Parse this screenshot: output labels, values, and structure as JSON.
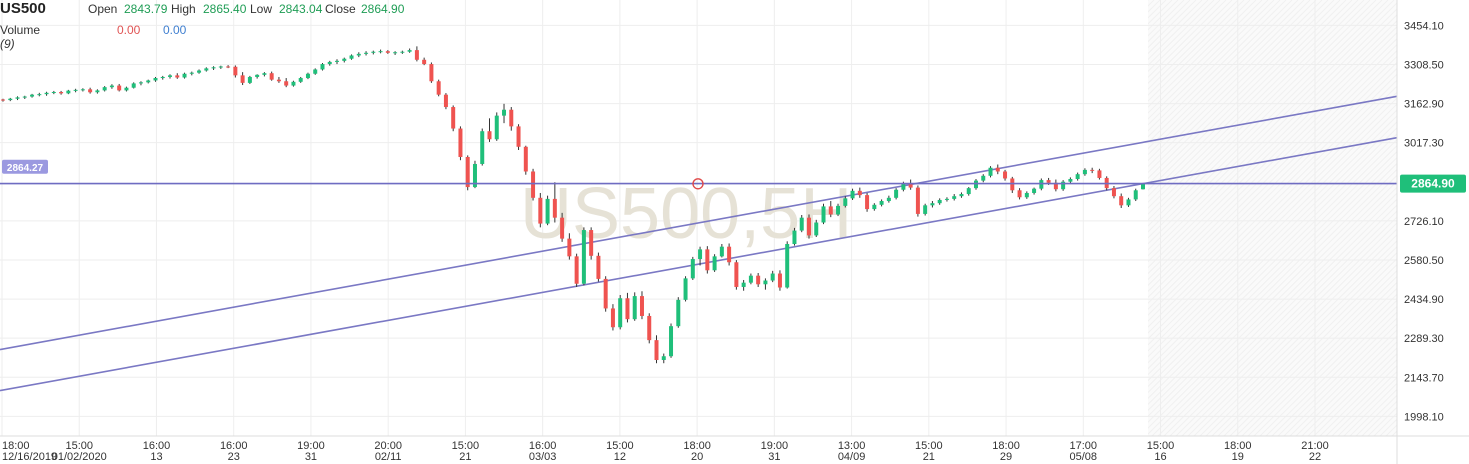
{
  "legend": {
    "symbol": "US500",
    "open_label": "Open",
    "open_value": "2843.79",
    "high_label": "High",
    "high_value": "2865.40",
    "low_label": "Low",
    "low_value": "2843.04",
    "close_label": "Close",
    "close_value": "2864.90",
    "volume_label": "Volume",
    "volume_period": "(9)",
    "volume_value_a": "0.00",
    "volume_value_b": "0.00"
  },
  "watermark": "US500,5H",
  "colors": {
    "up": "#26a69a",
    "up_fill": "#1fbf7a",
    "down": "#ef5350",
    "trend_line": "#7a78c4",
    "price_line": "#6f6cc2",
    "grid": "#eeeeee",
    "price_tag": "#1fbf7a",
    "cursor_tag": "#9b99e0",
    "cursor_circle": "#e04a4a"
  },
  "chart_data": {
    "type": "candlestick",
    "title": "",
    "xlabel": "",
    "ylabel": "",
    "ylim": [
      1925,
      3530
    ],
    "y_ticks": [
      "3454.10",
      "3308.50",
      "3162.90",
      "3017.30",
      "2864.90",
      "2726.10",
      "2580.50",
      "2434.90",
      "2289.30",
      "2143.70",
      "1998.10"
    ],
    "y_tick_values": [
      3454.1,
      3308.5,
      3162.9,
      3017.3,
      2864.9,
      2726.1,
      2580.5,
      2434.9,
      2289.3,
      2143.7,
      1998.1
    ],
    "current_price": "2864.90",
    "current_price_value": 2864.9,
    "cursor_price": "2864.27",
    "cursor_price_value": 2864.27,
    "x_ticks": [
      {
        "time": "18:00",
        "date": "12/16/2019"
      },
      {
        "time": "15:00",
        "date": "01/02/2020"
      },
      {
        "time": "16:00",
        "date": "13"
      },
      {
        "time": "16:00",
        "date": "23"
      },
      {
        "time": "19:00",
        "date": "31"
      },
      {
        "time": "20:00",
        "date": "02/11"
      },
      {
        "time": "15:00",
        "date": "21"
      },
      {
        "time": "16:00",
        "date": "03/03"
      },
      {
        "time": "15:00",
        "date": "12"
      },
      {
        "time": "18:00",
        "date": "20"
      },
      {
        "time": "19:00",
        "date": "31"
      },
      {
        "time": "13:00",
        "date": "04/09"
      },
      {
        "time": "15:00",
        "date": "21"
      },
      {
        "time": "18:00",
        "date": "29"
      },
      {
        "time": "17:00",
        "date": "05/08"
      },
      {
        "time": "15:00",
        "date": "16"
      },
      {
        "time": "18:00",
        "date": "19"
      },
      {
        "time": "21:00",
        "date": "22"
      }
    ],
    "trend_lines": [
      {
        "from_tick": "18:00 12/16/2019",
        "from_value": 2247,
        "to_value": 3190
      },
      {
        "from_tick": "18:00 12/16/2019",
        "from_value": 2094,
        "to_value": 3036
      }
    ],
    "candles": [
      [
        3178,
        3181,
        3170,
        3176
      ],
      [
        3176,
        3184,
        3172,
        3181
      ],
      [
        3181,
        3190,
        3176,
        3186
      ],
      [
        3186,
        3192,
        3180,
        3189
      ],
      [
        3189,
        3199,
        3185,
        3196
      ],
      [
        3196,
        3203,
        3190,
        3198
      ],
      [
        3198,
        3207,
        3192,
        3203
      ],
      [
        3203,
        3210,
        3198,
        3206
      ],
      [
        3206,
        3210,
        3196,
        3201
      ],
      [
        3201,
        3214,
        3198,
        3211
      ],
      [
        3211,
        3218,
        3205,
        3214
      ],
      [
        3214,
        3220,
        3208,
        3216
      ],
      [
        3216,
        3222,
        3200,
        3205
      ],
      [
        3205,
        3216,
        3200,
        3212
      ],
      [
        3212,
        3228,
        3208,
        3224
      ],
      [
        3224,
        3235,
        3218,
        3230
      ],
      [
        3230,
        3236,
        3208,
        3212
      ],
      [
        3212,
        3226,
        3208,
        3222
      ],
      [
        3222,
        3242,
        3219,
        3238
      ],
      [
        3238,
        3246,
        3231,
        3242
      ],
      [
        3242,
        3252,
        3238,
        3249
      ],
      [
        3249,
        3262,
        3244,
        3258
      ],
      [
        3258,
        3266,
        3252,
        3262
      ],
      [
        3262,
        3272,
        3256,
        3268
      ],
      [
        3268,
        3276,
        3255,
        3260
      ],
      [
        3260,
        3278,
        3256,
        3274
      ],
      [
        3274,
        3282,
        3268,
        3278
      ],
      [
        3278,
        3290,
        3274,
        3286
      ],
      [
        3286,
        3298,
        3282,
        3294
      ],
      [
        3294,
        3302,
        3288,
        3298
      ],
      [
        3298,
        3304,
        3292,
        3301
      ],
      [
        3301,
        3306,
        3295,
        3300
      ],
      [
        3300,
        3305,
        3260,
        3268
      ],
      [
        3268,
        3280,
        3232,
        3240
      ],
      [
        3240,
        3266,
        3236,
        3262
      ],
      [
        3262,
        3272,
        3256,
        3270
      ],
      [
        3270,
        3280,
        3264,
        3276
      ],
      [
        3276,
        3282,
        3248,
        3252
      ],
      [
        3252,
        3262,
        3240,
        3246
      ],
      [
        3246,
        3258,
        3224,
        3230
      ],
      [
        3230,
        3248,
        3226,
        3244
      ],
      [
        3244,
        3262,
        3240,
        3258
      ],
      [
        3258,
        3278,
        3254,
        3274
      ],
      [
        3274,
        3294,
        3270,
        3290
      ],
      [
        3290,
        3314,
        3286,
        3310
      ],
      [
        3310,
        3322,
        3304,
        3318
      ],
      [
        3318,
        3328,
        3310,
        3322
      ],
      [
        3322,
        3334,
        3316,
        3330
      ],
      [
        3330,
        3346,
        3326,
        3342
      ],
      [
        3342,
        3354,
        3336,
        3348
      ],
      [
        3348,
        3358,
        3342,
        3352
      ],
      [
        3352,
        3360,
        3346,
        3356
      ],
      [
        3356,
        3364,
        3350,
        3358
      ],
      [
        3358,
        3362,
        3348,
        3352
      ],
      [
        3352,
        3358,
        3344,
        3354
      ],
      [
        3354,
        3360,
        3348,
        3356
      ],
      [
        3356,
        3368,
        3352,
        3362
      ],
      [
        3362,
        3376,
        3320,
        3326
      ],
      [
        3326,
        3334,
        3306,
        3310
      ],
      [
        3310,
        3316,
        3240,
        3246
      ],
      [
        3246,
        3252,
        3190,
        3196
      ],
      [
        3196,
        3202,
        3142,
        3150
      ],
      [
        3150,
        3156,
        3060,
        3070
      ],
      [
        3070,
        3078,
        2952,
        2964
      ],
      [
        2964,
        2970,
        2840,
        2852
      ],
      [
        2852,
        2950,
        2848,
        2938
      ],
      [
        2938,
        3070,
        2932,
        3060
      ],
      [
        3060,
        3108,
        3020,
        3030
      ],
      [
        3030,
        3130,
        3024,
        3118
      ],
      [
        3118,
        3162,
        3090,
        3140
      ],
      [
        3140,
        3150,
        3062,
        3078
      ],
      [
        3078,
        3086,
        2990,
        3002
      ],
      [
        3002,
        3006,
        2898,
        2910
      ],
      [
        2910,
        2920,
        2802,
        2812
      ],
      [
        2812,
        2830,
        2702,
        2716
      ],
      [
        2716,
        2820,
        2710,
        2808
      ],
      [
        2808,
        2870,
        2720,
        2738
      ],
      [
        2738,
        2756,
        2648,
        2660
      ],
      [
        2660,
        2680,
        2582,
        2594
      ],
      [
        2594,
        2604,
        2480,
        2492
      ],
      [
        2492,
        2702,
        2486,
        2692
      ],
      [
        2692,
        2702,
        2582,
        2596
      ],
      [
        2596,
        2608,
        2500,
        2510
      ],
      [
        2510,
        2520,
        2388,
        2400
      ],
      [
        2400,
        2416,
        2318,
        2330
      ],
      [
        2330,
        2450,
        2322,
        2438
      ],
      [
        2438,
        2458,
        2348,
        2360
      ],
      [
        2360,
        2460,
        2354,
        2446
      ],
      [
        2446,
        2464,
        2360,
        2372
      ],
      [
        2372,
        2382,
        2270,
        2282
      ],
      [
        2282,
        2300,
        2196,
        2208
      ],
      [
        2208,
        2232,
        2196,
        2222
      ],
      [
        2222,
        2344,
        2216,
        2334
      ],
      [
        2334,
        2442,
        2328,
        2432
      ],
      [
        2432,
        2520,
        2426,
        2512
      ],
      [
        2512,
        2592,
        2506,
        2584
      ],
      [
        2584,
        2630,
        2560,
        2620
      ],
      [
        2620,
        2632,
        2530,
        2542
      ],
      [
        2542,
        2602,
        2536,
        2594
      ],
      [
        2594,
        2640,
        2590,
        2630
      ],
      [
        2630,
        2642,
        2560,
        2572
      ],
      [
        2572,
        2580,
        2470,
        2480
      ],
      [
        2480,
        2506,
        2466,
        2496
      ],
      [
        2496,
        2530,
        2490,
        2522
      ],
      [
        2522,
        2532,
        2480,
        2490
      ],
      [
        2490,
        2512,
        2470,
        2504
      ],
      [
        2504,
        2540,
        2498,
        2530
      ],
      [
        2530,
        2542,
        2466,
        2478
      ],
      [
        2478,
        2650,
        2474,
        2640
      ],
      [
        2640,
        2700,
        2634,
        2690
      ],
      [
        2690,
        2748,
        2684,
        2738
      ],
      [
        2738,
        2750,
        2660,
        2672
      ],
      [
        2672,
        2730,
        2666,
        2720
      ],
      [
        2720,
        2790,
        2714,
        2780
      ],
      [
        2780,
        2800,
        2740,
        2750
      ],
      [
        2750,
        2790,
        2744,
        2782
      ],
      [
        2782,
        2818,
        2776,
        2810
      ],
      [
        2810,
        2846,
        2804,
        2838
      ],
      [
        2838,
        2850,
        2812,
        2822
      ],
      [
        2822,
        2830,
        2760,
        2770
      ],
      [
        2770,
        2792,
        2764,
        2786
      ],
      [
        2786,
        2806,
        2780,
        2800
      ],
      [
        2800,
        2820,
        2794,
        2812
      ],
      [
        2812,
        2848,
        2806,
        2842
      ],
      [
        2842,
        2872,
        2836,
        2864
      ],
      [
        2864,
        2880,
        2842,
        2850
      ],
      [
        2850,
        2858,
        2742,
        2752
      ],
      [
        2752,
        2790,
        2746,
        2784
      ],
      [
        2784,
        2800,
        2776,
        2792
      ],
      [
        2792,
        2810,
        2786,
        2804
      ],
      [
        2804,
        2814,
        2798,
        2808
      ],
      [
        2808,
        2826,
        2802,
        2818
      ],
      [
        2818,
        2832,
        2812,
        2826
      ],
      [
        2826,
        2852,
        2820,
        2848
      ],
      [
        2848,
        2882,
        2842,
        2876
      ],
      [
        2876,
        2900,
        2870,
        2894
      ],
      [
        2894,
        2930,
        2888,
        2924
      ],
      [
        2924,
        2936,
        2900,
        2910
      ],
      [
        2910,
        2916,
        2876,
        2884
      ],
      [
        2884,
        2890,
        2830,
        2840
      ],
      [
        2840,
        2848,
        2806,
        2814
      ],
      [
        2814,
        2836,
        2808,
        2830
      ],
      [
        2830,
        2850,
        2824,
        2846
      ],
      [
        2846,
        2884,
        2840,
        2878
      ],
      [
        2878,
        2886,
        2860,
        2868
      ],
      [
        2868,
        2880,
        2836,
        2844
      ],
      [
        2844,
        2878,
        2838,
        2872
      ],
      [
        2872,
        2888,
        2866,
        2882
      ],
      [
        2882,
        2906,
        2876,
        2900
      ],
      [
        2900,
        2922,
        2894,
        2916
      ],
      [
        2916,
        2924,
        2904,
        2914
      ],
      [
        2914,
        2920,
        2880,
        2886
      ],
      [
        2886,
        2892,
        2840,
        2848
      ],
      [
        2848,
        2856,
        2810,
        2818
      ],
      [
        2818,
        2828,
        2774,
        2784
      ],
      [
        2784,
        2812,
        2778,
        2806
      ],
      [
        2806,
        2846,
        2800,
        2840
      ],
      [
        2843.79,
        2865.4,
        2843.04,
        2864.9
      ]
    ]
  }
}
